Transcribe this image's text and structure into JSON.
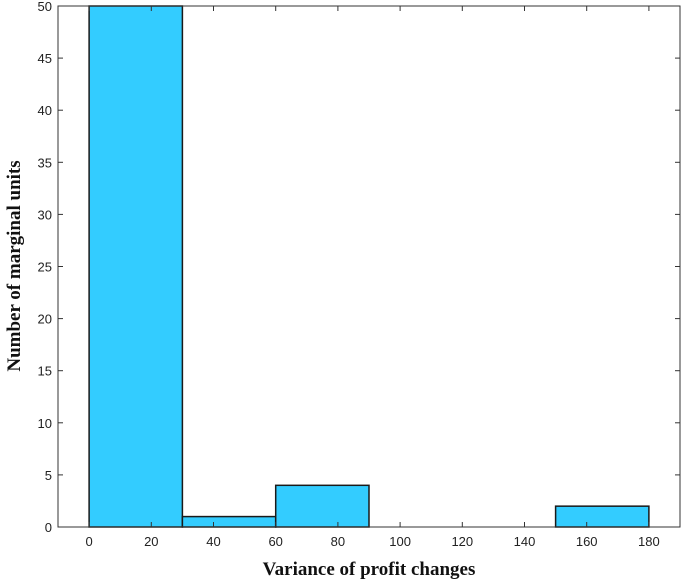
{
  "chart_data": {
    "type": "bar",
    "title": "",
    "xlabel": "Variance of profit changes",
    "ylabel": "Number of marginal units",
    "xlim": [
      -10,
      190
    ],
    "ylim": [
      0,
      50
    ],
    "x_ticks": [
      "0",
      "20",
      "40",
      "60",
      "80",
      "100",
      "120",
      "140",
      "160",
      "180"
    ],
    "y_ticks": [
      "0",
      "5",
      "10",
      "15",
      "20",
      "25",
      "30",
      "35",
      "40",
      "45",
      "50"
    ],
    "bins": [
      {
        "start": 0,
        "end": 30,
        "count": 50
      },
      {
        "start": 30,
        "end": 60,
        "count": 1
      },
      {
        "start": 60,
        "end": 90,
        "count": 4
      },
      {
        "start": 150,
        "end": 180,
        "count": 2
      }
    ],
    "bar_color": "#33ccff",
    "edge_color": "#1a1a1a",
    "grid": false
  }
}
